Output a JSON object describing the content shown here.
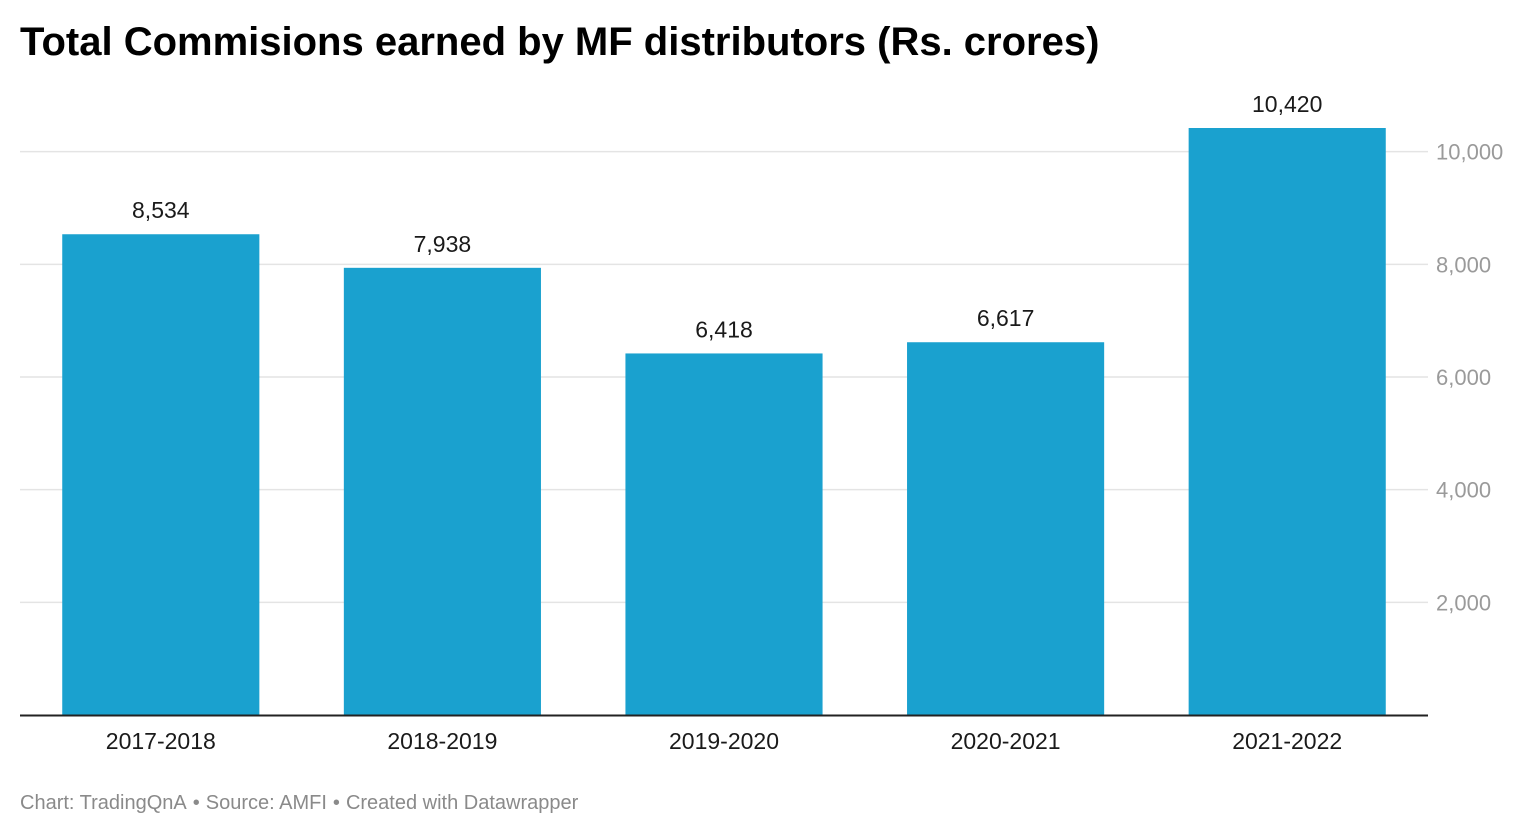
{
  "chart_data": {
    "type": "bar",
    "title": "Total Commisions earned by MF distributors (Rs. crores)",
    "xlabel": "",
    "ylabel": "",
    "categories": [
      "2017-2018",
      "2018-2019",
      "2019-2020",
      "2020-2021",
      "2021-2022"
    ],
    "values": [
      8534,
      7938,
      6418,
      6617,
      10420
    ],
    "value_labels": [
      "8,534",
      "7,938",
      "6,418",
      "6,617",
      "10,420"
    ],
    "ylim": [
      0,
      10420
    ],
    "yticks": [
      2000,
      4000,
      6000,
      8000,
      10000
    ],
    "ytick_labels": [
      "2,000",
      "4,000",
      "6,000",
      "8,000",
      "10,000"
    ],
    "y_axis_position": "right",
    "grid": true,
    "bar_color": "#1aa1cf",
    "gridline_color": "#e4e4e4",
    "tick_label_color": "#9a9a9a"
  },
  "footer": {
    "chart_credit": "Chart: TradingQnA",
    "source": "Source: AMFI",
    "created_with": "Created with Datawrapper",
    "separator": "•"
  }
}
